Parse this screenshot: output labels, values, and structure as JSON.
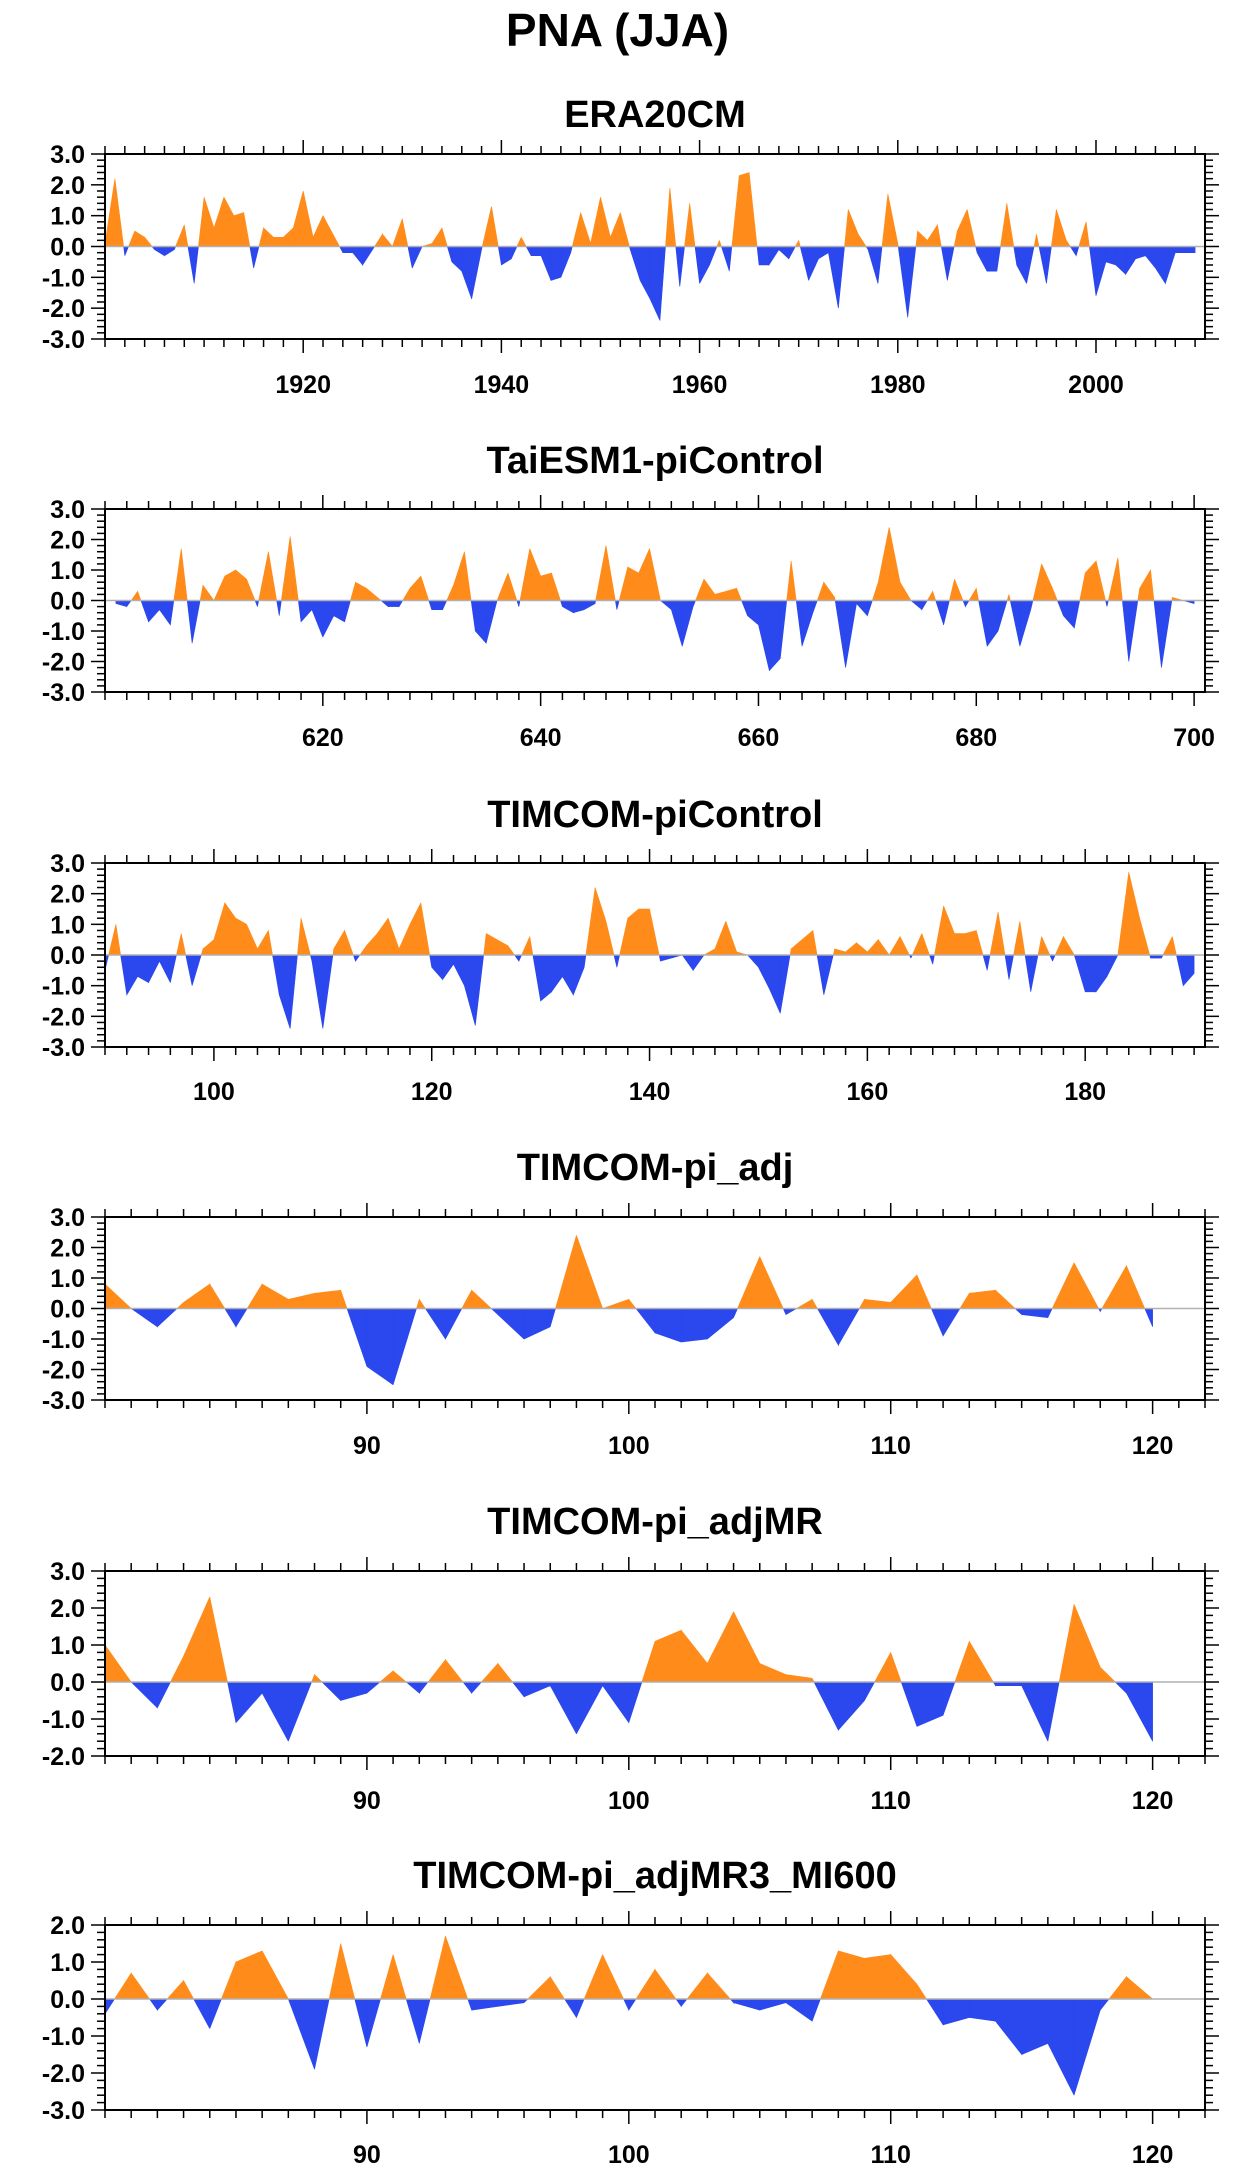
{
  "title": "PNA (JJA)",
  "colors": {
    "positive": "#ff8c1a",
    "negative": "#2b47ee",
    "axis": "#000000",
    "zero_line": "#b0b0b0"
  },
  "chart_data": [
    {
      "type": "area",
      "title": "ERA20CM",
      "xlim": [
        1900,
        2011
      ],
      "ylim": [
        -3,
        3
      ],
      "xticks": [
        1920,
        1940,
        1960,
        1980,
        2000
      ],
      "yticks": [
        3,
        2,
        1,
        0,
        -1,
        -2,
        -3
      ],
      "x": [
        1900,
        1901,
        1902,
        1903,
        1904,
        1905,
        1906,
        1907,
        1908,
        1909,
        1910,
        1911,
        1912,
        1913,
        1914,
        1915,
        1916,
        1917,
        1918,
        1919,
        1920,
        1921,
        1922,
        1923,
        1924,
        1925,
        1926,
        1927,
        1928,
        1929,
        1930,
        1931,
        1932,
        1933,
        1934,
        1935,
        1936,
        1937,
        1938,
        1939,
        1940,
        1941,
        1942,
        1943,
        1944,
        1945,
        1946,
        1947,
        1948,
        1949,
        1950,
        1951,
        1952,
        1953,
        1954,
        1955,
        1956,
        1957,
        1958,
        1959,
        1960,
        1961,
        1962,
        1963,
        1964,
        1965,
        1966,
        1967,
        1968,
        1969,
        1970,
        1971,
        1972,
        1973,
        1974,
        1975,
        1976,
        1977,
        1978,
        1979,
        1980,
        1981,
        1982,
        1983,
        1984,
        1985,
        1986,
        1987,
        1988,
        1989,
        1990,
        1991,
        1992,
        1993,
        1994,
        1995,
        1996,
        1997,
        1998,
        1999,
        2000,
        2001,
        2002,
        2003,
        2004,
        2005,
        2006,
        2007,
        2008,
        2009,
        2010
      ],
      "values": [
        0.1,
        2.2,
        -0.3,
        0.5,
        0.3,
        -0.1,
        -0.3,
        -0.1,
        0.7,
        -1.2,
        1.6,
        0.6,
        1.6,
        1.0,
        1.1,
        -0.7,
        0.6,
        0.3,
        0.3,
        0.6,
        1.8,
        0.3,
        1.0,
        0.4,
        -0.2,
        -0.2,
        -0.6,
        -0.1,
        0.4,
        0.0,
        0.9,
        -0.7,
        0.0,
        0.1,
        0.6,
        -0.5,
        -0.8,
        -1.7,
        -0.1,
        1.3,
        -0.6,
        -0.4,
        0.3,
        -0.3,
        -0.3,
        -1.1,
        -1.0,
        -0.2,
        1.1,
        0.1,
        1.6,
        0.3,
        1.1,
        -0.1,
        -1.1,
        -1.7,
        -2.4,
        1.9,
        -1.3,
        1.4,
        -1.2,
        -0.6,
        0.2,
        -0.8,
        2.3,
        2.4,
        -0.6,
        -0.6,
        -0.1,
        -0.4,
        0.2,
        -1.1,
        -0.4,
        -0.2,
        -2.0,
        1.2,
        0.4,
        -0.1,
        -1.2,
        1.7,
        0.1,
        -2.3,
        0.5,
        0.2,
        0.7,
        -1.1,
        0.5,
        1.2,
        -0.2,
        -0.8,
        -0.8,
        1.4,
        -0.6,
        -1.2,
        0.4,
        -1.2,
        1.2,
        0.2,
        -0.3,
        0.8,
        -1.6,
        -0.5,
        -0.6,
        -0.9,
        -0.4,
        -0.3,
        -0.7,
        -1.2,
        -0.2,
        -0.2,
        -0.2
      ]
    },
    {
      "type": "area",
      "title": "TaiESM1-piControl",
      "xlim": [
        600,
        701
      ],
      "ylim": [
        -3,
        3
      ],
      "xticks": [
        620,
        640,
        660,
        680,
        700
      ],
      "yticks": [
        3,
        2,
        1,
        0,
        -1,
        -2,
        -3
      ],
      "x": [
        601,
        602,
        603,
        604,
        605,
        606,
        607,
        608,
        609,
        610,
        611,
        612,
        613,
        614,
        615,
        616,
        617,
        618,
        619,
        620,
        621,
        622,
        623,
        624,
        625,
        626,
        627,
        628,
        629,
        630,
        631,
        632,
        633,
        634,
        635,
        636,
        637,
        638,
        639,
        640,
        641,
        642,
        643,
        644,
        645,
        646,
        647,
        648,
        649,
        650,
        651,
        652,
        653,
        654,
        655,
        656,
        657,
        658,
        659,
        660,
        661,
        662,
        663,
        664,
        665,
        666,
        667,
        668,
        669,
        670,
        671,
        672,
        673,
        674,
        675,
        676,
        677,
        678,
        679,
        680,
        681,
        682,
        683,
        684,
        685,
        686,
        687,
        688,
        689,
        690,
        691,
        692,
        693,
        694,
        695,
        696,
        697,
        698,
        699,
        700
      ],
      "values": [
        -0.1,
        -0.2,
        0.3,
        -0.7,
        -0.3,
        -0.8,
        1.7,
        -1.4,
        0.5,
        0.0,
        0.8,
        1.0,
        0.7,
        -0.2,
        1.6,
        -0.5,
        2.1,
        -0.7,
        -0.3,
        -1.2,
        -0.5,
        -0.7,
        0.6,
        0.4,
        0.1,
        -0.2,
        -0.2,
        0.4,
        0.8,
        -0.3,
        -0.3,
        0.5,
        1.6,
        -1.0,
        -1.4,
        0.0,
        0.9,
        -0.2,
        1.7,
        0.8,
        0.9,
        -0.2,
        -0.4,
        -0.3,
        -0.1,
        1.8,
        -0.3,
        1.1,
        0.9,
        1.7,
        0.0,
        -0.3,
        -1.5,
        -0.2,
        0.7,
        0.2,
        0.3,
        0.4,
        -0.5,
        -0.8,
        -2.3,
        -1.9,
        1.3,
        -1.5,
        -0.4,
        0.6,
        0.1,
        -2.2,
        -0.1,
        -0.5,
        0.6,
        2.4,
        0.6,
        0.0,
        -0.3,
        0.3,
        -0.8,
        0.7,
        -0.2,
        0.4,
        -1.5,
        -1.0,
        0.2,
        -1.5,
        -0.3,
        1.2,
        0.4,
        -0.5,
        -0.9,
        0.9,
        1.3,
        -0.2,
        1.4,
        -2.0,
        0.4,
        1.0,
        -2.2,
        0.1,
        0.0,
        -0.1
      ]
    },
    {
      "type": "area",
      "title": "TIMCOM-piControl",
      "xlim": [
        90,
        191
      ],
      "ylim": [
        -3,
        3
      ],
      "xticks": [
        100,
        120,
        140,
        160,
        180
      ],
      "yticks": [
        3,
        2,
        1,
        0,
        -1,
        -2,
        -3
      ],
      "x": [
        90,
        91,
        92,
        93,
        94,
        95,
        96,
        97,
        98,
        99,
        100,
        101,
        102,
        103,
        104,
        105,
        106,
        107,
        108,
        109,
        110,
        111,
        112,
        113,
        114,
        115,
        116,
        117,
        118,
        119,
        120,
        121,
        122,
        123,
        124,
        125,
        126,
        127,
        128,
        129,
        130,
        131,
        132,
        133,
        134,
        135,
        136,
        137,
        138,
        139,
        140,
        141,
        142,
        143,
        144,
        145,
        146,
        147,
        148,
        149,
        150,
        151,
        152,
        153,
        154,
        155,
        156,
        157,
        158,
        159,
        160,
        161,
        162,
        163,
        164,
        165,
        166,
        167,
        168,
        169,
        170,
        171,
        172,
        173,
        174,
        175,
        176,
        177,
        178,
        179,
        180,
        181,
        182,
        183,
        184,
        185,
        186,
        187,
        188,
        189,
        190
      ],
      "values": [
        -0.5,
        1.0,
        -1.3,
        -0.7,
        -0.9,
        -0.2,
        -0.9,
        0.7,
        -1.0,
        0.2,
        0.5,
        1.7,
        1.2,
        1.0,
        0.2,
        0.8,
        -1.3,
        -2.4,
        1.2,
        -0.2,
        -2.4,
        0.2,
        0.8,
        -0.2,
        0.3,
        0.7,
        1.2,
        0.2,
        1.0,
        1.7,
        -0.4,
        -0.8,
        -0.3,
        -1.0,
        -2.3,
        0.7,
        0.5,
        0.3,
        -0.2,
        0.6,
        -1.5,
        -1.2,
        -0.7,
        -1.3,
        -0.4,
        2.2,
        1.1,
        -0.4,
        1.2,
        1.5,
        1.5,
        -0.2,
        -0.1,
        0.0,
        -0.5,
        0.0,
        0.2,
        1.1,
        0.1,
        0.0,
        -0.4,
        -1.1,
        -1.9,
        0.2,
        0.5,
        0.8,
        -1.3,
        0.2,
        0.1,
        0.4,
        0.1,
        0.5,
        0.0,
        0.6,
        -0.1,
        0.7,
        -0.3,
        1.6,
        0.7,
        0.7,
        0.8,
        -0.5,
        1.4,
        -0.8,
        1.1,
        -1.2,
        0.6,
        -0.2,
        0.6,
        0.0,
        -1.2,
        -1.2,
        -0.7,
        0.0,
        2.7,
        1.2,
        -0.1,
        -0.1,
        0.6,
        -1.0,
        -0.6
      ],
      "x_tail_note": ""
    },
    {
      "type": "area",
      "title": "TIMCOM-pi_adj",
      "xlim": [
        80,
        122
      ],
      "ylim": [
        -3,
        3
      ],
      "xticks": [
        90,
        100,
        110,
        120
      ],
      "yticks": [
        3,
        2,
        1,
        0,
        -1,
        -2,
        -3
      ],
      "x": [
        80,
        81,
        82,
        83,
        84,
        85,
        86,
        87,
        88,
        89,
        90,
        91,
        92,
        93,
        94,
        95,
        96,
        97,
        98,
        99,
        100,
        101,
        102,
        103,
        104,
        105,
        106,
        107,
        108,
        109,
        110,
        111,
        112,
        113,
        114,
        115,
        116,
        117,
        118,
        119,
        120
      ],
      "values": [
        0.8,
        0.0,
        -0.6,
        0.2,
        0.8,
        -0.6,
        0.8,
        0.3,
        0.5,
        0.6,
        -1.9,
        -2.5,
        0.3,
        -1.0,
        0.6,
        -0.2,
        -1.0,
        -0.6,
        2.4,
        0.0,
        0.3,
        -0.8,
        -1.1,
        -1.0,
        -0.3,
        1.7,
        -0.2,
        0.3,
        -1.2,
        0.3,
        0.2,
        1.1,
        -0.9,
        0.5,
        0.6,
        -0.2,
        -0.3,
        1.5,
        -0.1,
        1.4,
        -0.6
      ]
    },
    {
      "type": "area",
      "title": "TIMCOM-pi_adjMR",
      "xlim": [
        80,
        122
      ],
      "ylim": [
        -2,
        3
      ],
      "xticks": [
        90,
        100,
        110,
        120
      ],
      "yticks": [
        3,
        2,
        1,
        0,
        -1,
        -2
      ],
      "x": [
        80,
        81,
        82,
        83,
        84,
        85,
        86,
        87,
        88,
        89,
        90,
        91,
        92,
        93,
        94,
        95,
        96,
        97,
        98,
        99,
        100,
        101,
        102,
        103,
        104,
        105,
        106,
        107,
        108,
        109,
        110,
        111,
        112,
        113,
        114,
        115,
        116,
        117,
        118,
        119,
        120
      ],
      "values": [
        1.0,
        0.0,
        -0.7,
        0.7,
        2.3,
        -1.1,
        -0.3,
        -1.6,
        0.2,
        -0.5,
        -0.3,
        0.3,
        -0.3,
        0.6,
        -0.3,
        0.5,
        -0.4,
        -0.1,
        -1.4,
        -0.1,
        -1.1,
        1.1,
        1.4,
        0.5,
        1.9,
        0.5,
        0.2,
        0.1,
        -1.3,
        -0.5,
        0.8,
        -1.2,
        -0.9,
        1.1,
        -0.1,
        -0.1,
        -1.6,
        2.1,
        0.4,
        -0.3,
        -1.6
      ]
    },
    {
      "type": "area",
      "title": "TIMCOM-pi_adjMR3_MI600",
      "xlim": [
        80,
        122
      ],
      "ylim": [
        -3,
        2
      ],
      "xticks": [
        90,
        100,
        110,
        120
      ],
      "yticks": [
        2,
        1,
        0,
        -1,
        -2,
        -3
      ],
      "x": [
        80,
        81,
        82,
        83,
        84,
        85,
        86,
        87,
        88,
        89,
        90,
        91,
        92,
        93,
        94,
        95,
        96,
        97,
        98,
        99,
        100,
        101,
        102,
        103,
        104,
        105,
        106,
        107,
        108,
        109,
        110,
        111,
        112,
        113,
        114,
        115,
        116,
        117,
        118,
        119,
        120
      ],
      "values": [
        -0.4,
        0.7,
        -0.3,
        0.5,
        -0.8,
        1.0,
        1.3,
        0.0,
        -1.9,
        1.5,
        -1.3,
        1.2,
        -1.2,
        1.7,
        -0.3,
        -0.2,
        -0.1,
        0.6,
        -0.5,
        1.2,
        -0.3,
        0.8,
        -0.2,
        0.7,
        -0.1,
        -0.3,
        -0.1,
        -0.6,
        1.3,
        1.1,
        1.2,
        0.4,
        -0.7,
        -0.5,
        -0.6,
        -1.5,
        -1.2,
        -2.6,
        -0.3,
        0.6,
        0.0
      ]
    }
  ]
}
